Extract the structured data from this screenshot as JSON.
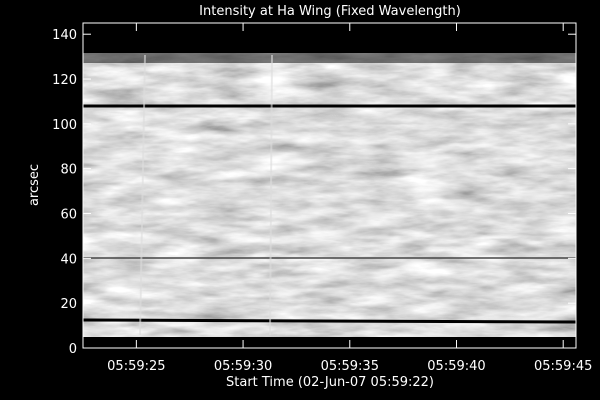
{
  "chart_data": {
    "type": "image",
    "title": "Intensity at Ha Wing (Fixed Wavelength)",
    "x_label": "Start Time (02-Jun-07 05:59:22)",
    "y_label": "arcsec",
    "xlim": [
      22.5,
      45.6
    ],
    "xticks": [
      {
        "value": 25,
        "label": "05:59:25"
      },
      {
        "value": 30,
        "label": "05:59:30"
      },
      {
        "value": 35,
        "label": "05:59:35"
      },
      {
        "value": 40,
        "label": "05:59:40"
      },
      {
        "value": 45,
        "label": "05:59:45"
      }
    ],
    "ylim": [
      0,
      145
    ],
    "yticks": [
      0,
      20,
      40,
      60,
      80,
      100,
      120,
      140
    ]
  }
}
